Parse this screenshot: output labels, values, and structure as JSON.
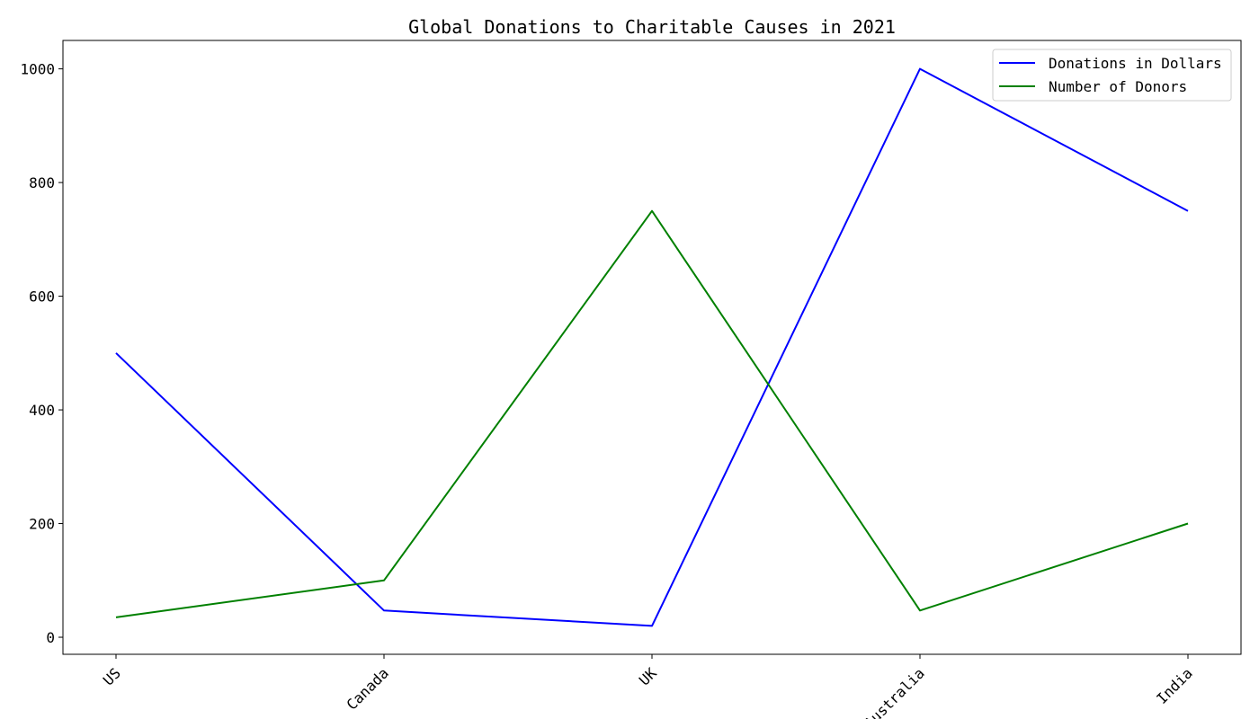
{
  "chart_data": {
    "type": "line",
    "title": "Global Donations to Charitable Causes in 2021",
    "xlabel": "",
    "ylabel": "",
    "categories": [
      "US",
      "Canada",
      "UK",
      "Australia",
      "India"
    ],
    "series": [
      {
        "name": "Donations in Dollars",
        "values": [
          500,
          47,
          20,
          1000,
          750
        ],
        "color": "#0000ff"
      },
      {
        "name": "Number of Donors",
        "values": [
          35,
          100,
          750,
          47,
          200
        ],
        "color": "#008000"
      }
    ],
    "ylim": [
      -30,
      1050
    ],
    "yticks": [
      0,
      200,
      400,
      600,
      800,
      1000
    ],
    "grid": false,
    "legend_position": "top-right"
  }
}
